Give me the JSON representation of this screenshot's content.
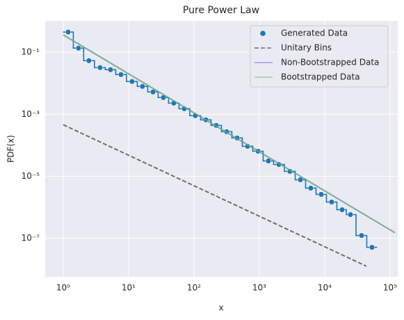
{
  "chart_data": {
    "type": "line",
    "title": "Pure Power Law",
    "x_label": "x",
    "y_label": "PDF(x)",
    "log_x": true,
    "log_y": true,
    "grid": true,
    "legend": "upper right",
    "alpha": 0.6,
    "xlim": [
      0.53,
      131000
    ],
    "ylim": [
      5.7e-09,
      1.03
    ],
    "xticks": [
      {
        "value": 1,
        "label": "10⁰"
      },
      {
        "value": 10,
        "label": "10¹"
      },
      {
        "value": 100,
        "label": "10²"
      },
      {
        "value": 1000,
        "label": "10³"
      },
      {
        "value": 10000,
        "label": "10⁴"
      },
      {
        "value": 100000,
        "label": "10⁵"
      }
    ],
    "yticks": [
      {
        "value": 0.1,
        "label": "10⁻¹"
      },
      {
        "value": 0.001,
        "label": "10⁻³"
      },
      {
        "value": 1e-05,
        "label": "10⁻⁵"
      },
      {
        "value": 1e-07,
        "label": "10⁻⁷"
      }
    ],
    "series": [
      {
        "name": "Generated Data",
        "kind": "scatter",
        "steps": true,
        "color": "#1f77b4",
        "x": [
          1.19,
          1.71,
          2.47,
          3.66,
          5.29,
          7.64,
          11.3,
          16.3,
          23.6,
          34.0,
          49.1,
          71.0,
          105,
          152,
          219,
          316,
          457,
          660,
          953,
          1375,
          1986,
          2938,
          4246,
          6124,
          8850,
          12770,
          18450,
          24770,
          36640,
          52850
        ],
        "values": [
          0.449,
          0.136,
          0.0537,
          0.0321,
          0.0274,
          0.0191,
          0.0114,
          0.00792,
          0.00524,
          0.00346,
          0.00229,
          0.00151,
          0.000902,
          0.000661,
          0.000437,
          0.000274,
          0.000172,
          9.25e-05,
          6.44e-05,
          3.12e-05,
          2.41e-05,
          1.44e-05,
          7.72e-06,
          4.15e-06,
          2.61e-06,
          1.48e-06,
          8.35e-07,
          5.81e-07,
          1.23e-07,
          5.11e-08
        ]
      },
      {
        "name": "Unitary Bins",
        "kind": "line",
        "dashed": true,
        "color": "#6e6e6e",
        "x": [
          1,
          43450
        ],
        "values": [
          0.00046,
          1.26e-08
        ]
      },
      {
        "name": "Non-Bootstrapped Data",
        "kind": "line",
        "color": "#6b6be6",
        "x": [
          1,
          118700
        ],
        "values": [
          0.365,
          1.51e-07
        ]
      },
      {
        "name": "Bootstrapped Data",
        "kind": "line",
        "color": "#66bb66",
        "x": [
          1,
          118700
        ],
        "values": [
          0.365,
          1.51e-07
        ]
      }
    ]
  }
}
